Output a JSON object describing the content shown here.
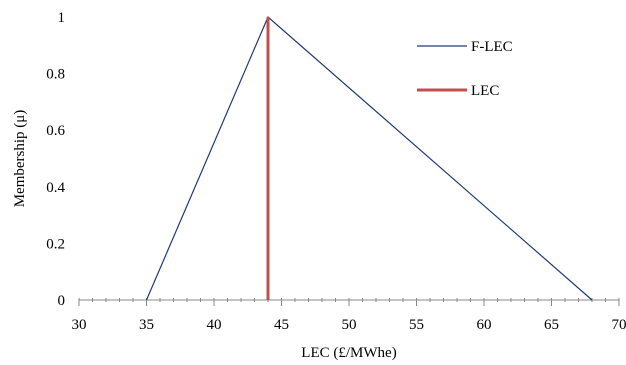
{
  "chart_data": {
    "type": "line",
    "xlabel": "LEC (£/MWhe)",
    "ylabel": "Membership (μ)",
    "xlim": [
      30,
      70
    ],
    "ylim": [
      0,
      1
    ],
    "x_ticks": [
      "30",
      "35",
      "40",
      "45",
      "50",
      "55",
      "60",
      "65",
      "70"
    ],
    "y_ticks": [
      "0",
      "0.2",
      "0.4",
      "0.6",
      "0.8",
      "1"
    ],
    "x_minor_step": 1,
    "grid": false,
    "legend_position": "top-right",
    "series": [
      {
        "name": "F-LEC",
        "color": "#1f3b73",
        "points": [
          [
            35,
            0
          ],
          [
            44,
            1
          ],
          [
            68,
            0
          ]
        ]
      },
      {
        "name": "LEC",
        "color": "#c0504d",
        "points": [
          [
            44,
            0
          ],
          [
            44,
            1
          ]
        ]
      }
    ]
  }
}
